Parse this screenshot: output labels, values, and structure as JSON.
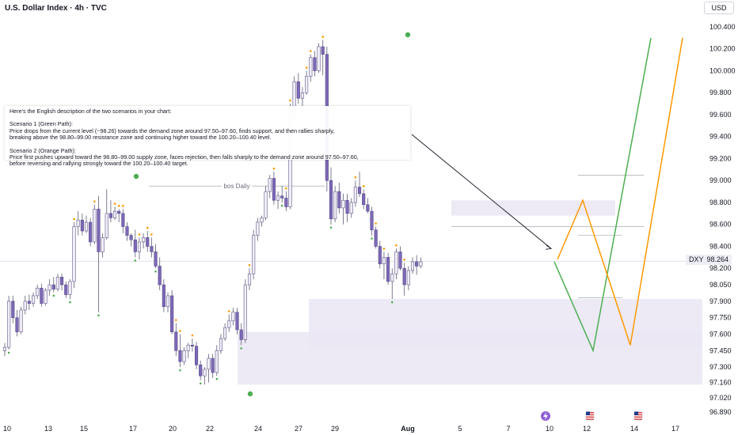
{
  "header": {
    "title": "U.S. Dollar Index · 4h · TVC",
    "currency": "USD"
  },
  "price_tag": {
    "symbol": "DXY",
    "value": "98.264"
  },
  "annotation": {
    "line1": "Here's the English description of the two scenarios in your chart:",
    "line2": "Scenario 1 (Green Path):",
    "line3": "Price drops from the current level (~98.26) towards the demand zone around 97.50–97.60, finds support, and then rallies sharply,",
    "line4": "breaking above the 98.80–99.00 resistance zone and continuing higher toward the 100.20–100.40 level.",
    "line5": "Scenario 2 (Orange Path):",
    "line6": "Price first pushes upward toward the 98.80–99.00 supply zone, faces rejection, then falls sharply to the demand zone around 97.50–97.60,",
    "line7": "before reversing and rallying strongly toward the 100.20–100.40 target."
  },
  "bos_label": "bos Daily",
  "colors": {
    "bull_body": "#f0edf7",
    "bear_body": "#7e68b8",
    "wick": "#5d5d7a",
    "zone": "#eae6f5",
    "green_path": "#4caf50",
    "orange_path": "#ff9800",
    "trendline": "#131722",
    "pivot_high": "#ff9800",
    "pivot_low": "#4caf50"
  },
  "chart_data": {
    "type": "candlestick",
    "ylim": [
      96.85,
      100.45
    ],
    "y_ticks": [
      "100.400",
      "100.200",
      "100.000",
      "99.800",
      "99.600",
      "99.400",
      "99.200",
      "99.000",
      "98.800",
      "98.600",
      "98.400",
      "98.200",
      "98.050",
      "97.900",
      "97.750",
      "97.600",
      "97.450",
      "97.300",
      "97.160",
      "97.020",
      "96.890"
    ],
    "x_ticks": [
      "10",
      "13",
      "15",
      "17",
      "20",
      "22",
      "24",
      "27",
      "29",
      "Aug",
      "5",
      "7",
      "10",
      "12",
      "14",
      "17"
    ],
    "last_price": 98.264,
    "candles": [
      [
        97.45,
        97.52,
        97.4,
        97.48
      ],
      [
        97.48,
        97.95,
        97.46,
        97.9
      ],
      [
        97.9,
        97.95,
        97.7,
        97.75
      ],
      [
        97.75,
        97.82,
        97.58,
        97.62
      ],
      [
        97.62,
        97.85,
        97.6,
        97.82
      ],
      [
        97.82,
        97.95,
        97.78,
        97.9
      ],
      [
        97.9,
        97.96,
        97.82,
        97.88
      ],
      [
        97.88,
        97.98,
        97.85,
        97.95
      ],
      [
        97.95,
        98.05,
        97.92,
        98.02
      ],
      [
        98.02,
        98.06,
        97.85,
        97.88
      ],
      [
        97.88,
        98.02,
        97.86,
        98.0
      ],
      [
        98.0,
        98.1,
        97.95,
        98.05
      ],
      [
        98.05,
        98.12,
        97.98,
        98.01
      ],
      [
        98.01,
        98.15,
        97.99,
        98.12
      ],
      [
        98.12,
        98.15,
        98.0,
        98.05
      ],
      [
        98.05,
        98.08,
        97.93,
        97.96
      ],
      [
        97.96,
        98.1,
        97.92,
        98.08
      ],
      [
        98.08,
        98.62,
        98.02,
        98.58
      ],
      [
        98.58,
        98.72,
        98.5,
        98.64
      ],
      [
        98.64,
        98.7,
        98.5,
        98.54
      ],
      [
        98.54,
        98.68,
        98.52,
        98.62
      ],
      [
        98.62,
        98.66,
        98.4,
        98.44
      ],
      [
        98.44,
        98.78,
        98.42,
        98.74
      ],
      [
        98.74,
        98.86,
        97.8,
        98.35
      ],
      [
        98.35,
        98.52,
        98.3,
        98.48
      ],
      [
        98.48,
        98.92,
        98.46,
        98.7
      ],
      [
        98.7,
        98.82,
        98.62,
        98.66
      ],
      [
        98.66,
        98.76,
        98.64,
        98.72
      ],
      [
        98.72,
        98.74,
        98.62,
        98.7
      ],
      [
        98.7,
        98.74,
        98.52,
        98.58
      ],
      [
        98.58,
        98.62,
        98.45,
        98.5
      ],
      [
        98.5,
        98.52,
        98.4,
        98.46
      ],
      [
        98.46,
        98.55,
        98.3,
        98.35
      ],
      [
        98.35,
        98.48,
        98.28,
        98.44
      ],
      [
        98.44,
        98.52,
        98.38,
        98.48
      ],
      [
        98.48,
        98.54,
        98.35,
        98.4
      ],
      [
        98.4,
        98.48,
        98.3,
        98.35
      ],
      [
        98.35,
        98.42,
        98.2,
        98.22
      ],
      [
        98.22,
        98.3,
        98.0,
        98.05
      ],
      [
        98.05,
        98.1,
        97.8,
        97.85
      ],
      [
        97.85,
        97.98,
        97.8,
        97.95
      ],
      [
        97.95,
        98.0,
        97.6,
        97.62
      ],
      [
        97.62,
        97.7,
        97.4,
        97.45
      ],
      [
        97.45,
        97.6,
        97.3,
        97.35
      ],
      [
        97.35,
        97.48,
        97.32,
        97.45
      ],
      [
        97.45,
        97.52,
        97.38,
        97.5
      ],
      [
        97.5,
        97.56,
        97.44,
        97.49
      ],
      [
        97.49,
        97.53,
        97.28,
        97.32
      ],
      [
        97.32,
        97.36,
        97.18,
        97.22
      ],
      [
        97.22,
        97.3,
        97.14,
        97.28
      ],
      [
        97.28,
        97.42,
        97.16,
        97.38
      ],
      [
        97.38,
        97.42,
        97.2,
        97.25
      ],
      [
        97.25,
        97.5,
        97.22,
        97.45
      ],
      [
        97.45,
        97.6,
        97.42,
        97.56
      ],
      [
        97.56,
        97.7,
        97.54,
        97.66
      ],
      [
        97.66,
        97.78,
        97.62,
        97.72
      ],
      [
        97.72,
        97.84,
        97.68,
        97.8
      ],
      [
        97.8,
        97.84,
        97.6,
        97.64
      ],
      [
        97.64,
        97.7,
        97.5,
        97.55
      ],
      [
        97.55,
        98.1,
        97.52,
        98.05
      ],
      [
        98.05,
        98.2,
        98.0,
        98.15
      ],
      [
        98.15,
        98.55,
        98.1,
        98.5
      ],
      [
        98.5,
        98.66,
        98.45,
        98.62
      ],
      [
        98.62,
        98.68,
        98.58,
        98.66
      ],
      [
        98.66,
        98.95,
        98.64,
        98.9
      ],
      [
        98.9,
        99.05,
        98.84,
        99.02
      ],
      [
        99.02,
        99.08,
        98.78,
        98.82
      ],
      [
        98.82,
        98.9,
        98.74,
        98.86
      ],
      [
        98.86,
        98.95,
        98.8,
        98.84
      ],
      [
        98.84,
        98.9,
        98.72,
        98.76
      ],
      [
        98.76,
        99.7,
        98.74,
        99.6
      ],
      [
        99.6,
        99.95,
        99.55,
        99.9
      ],
      [
        99.9,
        99.98,
        99.7,
        99.75
      ],
      [
        99.75,
        99.85,
        99.65,
        99.8
      ],
      [
        99.8,
        100.0,
        99.78,
        99.95
      ],
      [
        99.95,
        100.15,
        99.9,
        100.12
      ],
      [
        100.12,
        100.18,
        99.95,
        100.0
      ],
      [
        100.0,
        100.25,
        99.98,
        100.22
      ],
      [
        100.22,
        100.28,
        99.96,
        100.15
      ],
      [
        100.15,
        100.22,
        98.9,
        99.0
      ],
      [
        99.0,
        99.12,
        98.6,
        98.65
      ],
      [
        98.65,
        98.95,
        98.62,
        98.9
      ],
      [
        98.9,
        98.98,
        98.7,
        98.75
      ],
      [
        98.75,
        98.88,
        98.6,
        98.82
      ],
      [
        98.82,
        98.88,
        98.62,
        98.7
      ],
      [
        98.7,
        98.84,
        98.66,
        98.8
      ],
      [
        98.8,
        99.0,
        98.76,
        98.94
      ],
      [
        98.94,
        99.08,
        98.85,
        98.88
      ],
      [
        98.88,
        98.92,
        98.74,
        98.78
      ],
      [
        98.78,
        98.84,
        98.7,
        98.72
      ],
      [
        98.72,
        98.76,
        98.5,
        98.55
      ],
      [
        98.55,
        98.58,
        98.38,
        98.4
      ],
      [
        98.4,
        98.45,
        98.2,
        98.24
      ],
      [
        98.24,
        98.35,
        98.1,
        98.3
      ],
      [
        98.3,
        98.34,
        98.05,
        98.08
      ],
      [
        98.08,
        98.2,
        97.92,
        98.15
      ],
      [
        98.15,
        98.38,
        98.1,
        98.35
      ],
      [
        98.35,
        98.4,
        98.18,
        98.2
      ],
      [
        98.2,
        98.25,
        97.95,
        98.05
      ],
      [
        98.05,
        98.22,
        98.0,
        98.18
      ],
      [
        98.18,
        98.3,
        98.15,
        98.26
      ],
      [
        98.26,
        98.32,
        98.14,
        98.22
      ],
      [
        98.22,
        98.3,
        98.2,
        98.26
      ]
    ],
    "zones": [
      {
        "from": 98.68,
        "to": 98.82
      },
      {
        "from": 97.48,
        "to": 97.92
      },
      {
        "from": 97.14,
        "to": 97.62
      }
    ],
    "levels": [
      99.05,
      98.58,
      98.5,
      97.93
    ],
    "trendline": {
      "from": 99.42,
      "to": 98.38
    },
    "bos": {
      "level": 98.95,
      "label": "bos Daily"
    },
    "scenario_green": [
      98.26,
      97.45,
      100.3
    ],
    "scenario_orange": [
      98.28,
      98.82,
      97.5,
      100.3
    ]
  }
}
